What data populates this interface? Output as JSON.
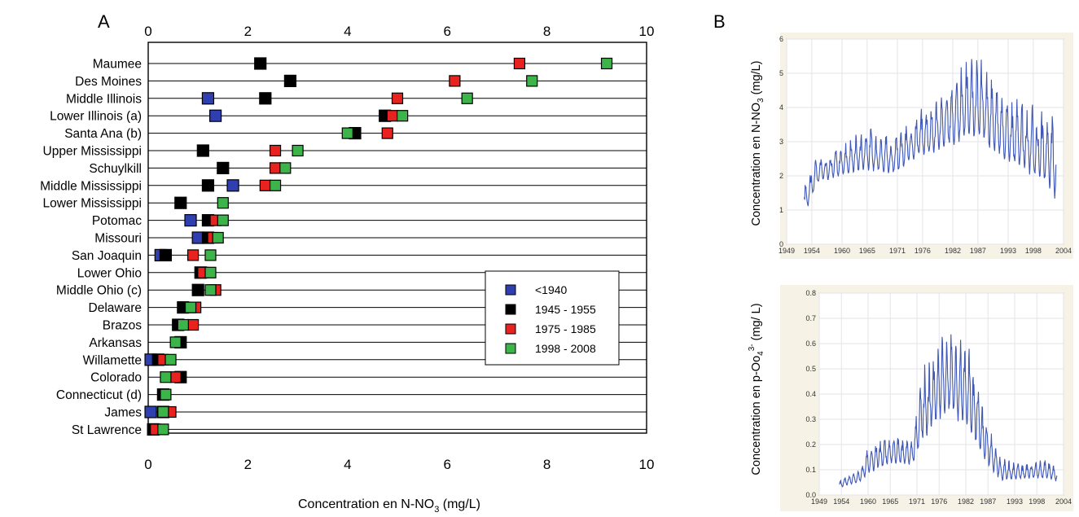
{
  "chart_data": [
    {
      "panel": "A",
      "type": "scatter",
      "xlabel": "Concentration en N-NO₃ (mg/L)",
      "xlabel_parts": {
        "main": "Concentration en N-NO",
        "sub": "3",
        "tail": " (mg/L)"
      },
      "xlim": [
        0,
        10
      ],
      "xticks": [
        "0",
        "2",
        "4",
        "6",
        "8",
        "10"
      ],
      "legend": {
        "placement": "center-right",
        "entries": [
          {
            "label": "<1940",
            "color": "#2f3fb0"
          },
          {
            "label": "1945 - 1955",
            "color": "#000000"
          },
          {
            "label": "1975 - 1985",
            "color": "#e8231f"
          },
          {
            "label": "1998 - 2008",
            "color": "#3cb44a"
          }
        ]
      },
      "categories": [
        "Maumee",
        "Des Moines",
        "Middle Illinois",
        "Lower Illinois (a)",
        "Santa Ana (b)",
        "Upper Mississippi",
        "Schuylkill",
        "Middle Mississippi",
        "Lower Mississippi",
        "Potomac",
        "Missouri",
        "San Joaquin",
        "Lower Ohio",
        "Middle Ohio (c)",
        "Delaware",
        "Brazos",
        "Arkansas",
        "Willamette",
        "Colorado",
        "Connecticut (d)",
        "James",
        "St Lawrence"
      ],
      "series": [
        {
          "name": "<1940",
          "values": [
            null,
            null,
            1.2,
            1.35,
            null,
            null,
            null,
            1.7,
            null,
            0.85,
            1.0,
            0.25,
            null,
            null,
            null,
            null,
            null,
            0.05,
            null,
            null,
            0.05,
            null
          ]
        },
        {
          "name": "1945 - 1955",
          "values": [
            2.25,
            2.85,
            2.35,
            4.75,
            4.15,
            1.1,
            1.5,
            1.2,
            0.65,
            1.2,
            1.2,
            0.35,
            1.05,
            1.0,
            0.7,
            0.6,
            0.65,
            0.2,
            0.65,
            0.3,
            0.3,
            0.1
          ]
        },
        {
          "name": "1975 - 1985",
          "values": [
            7.45,
            6.15,
            5.0,
            4.9,
            4.8,
            2.55,
            2.55,
            2.35,
            null,
            1.35,
            1.3,
            0.9,
            1.1,
            1.35,
            0.95,
            0.9,
            null,
            0.3,
            0.55,
            null,
            0.45,
            0.15
          ]
        },
        {
          "name": "1998 - 2008",
          "values": [
            9.2,
            7.7,
            6.4,
            5.1,
            4.0,
            3.0,
            2.75,
            2.55,
            1.5,
            1.5,
            1.4,
            1.25,
            1.25,
            1.25,
            0.85,
            0.7,
            0.55,
            0.45,
            0.35,
            0.35,
            0.3,
            0.3
          ]
        }
      ]
    },
    {
      "panel": "B",
      "type": "line",
      "ylabel": "Concentration en N-NO₃ (mg/L)",
      "ylabel_parts": {
        "main": "Concentration en N-NO",
        "sub": "3",
        "tail": " (mg/L)"
      },
      "xlim": [
        1949,
        2004
      ],
      "ylim": [
        0,
        6
      ],
      "xticks": [
        "1949",
        "1954",
        "1960",
        "1965",
        "1971",
        "1976",
        "1982",
        "1987",
        "1993",
        "1998",
        "2004"
      ],
      "yticks": [
        "0",
        "1",
        "2",
        "3",
        "4",
        "5",
        "6"
      ],
      "series_color": "#3f57b5",
      "x_start": 1952.5,
      "x_end": 2002.5,
      "envelope": {
        "x": [
          1952.5,
          1955,
          1960,
          1965,
          1970,
          1975,
          1980,
          1985,
          1988,
          1990,
          1995,
          2000,
          2002.5
        ],
        "low": [
          0.6,
          1.6,
          1.8,
          1.9,
          1.8,
          2.3,
          2.4,
          2.6,
          2.5,
          2.2,
          1.8,
          1.4,
          0.8
        ],
        "high": [
          1.9,
          2.6,
          3.0,
          3.6,
          3.2,
          3.9,
          4.6,
          5.7,
          5.6,
          5.0,
          4.4,
          4.1,
          4.0
        ]
      }
    },
    {
      "panel": "B",
      "type": "line",
      "ylabel": "Concentration en p-Oo₄³⁻ (mg/L)",
      "ylabel_parts": {
        "main": "Concentration en p-Oo",
        "sub": "4",
        "sup": "3-",
        "tail": " (mg/ L)"
      },
      "xlim": [
        1949,
        2004
      ],
      "ylim": [
        0,
        0.8
      ],
      "xticks": [
        "1949",
        "1954",
        "1960",
        "1965",
        "1971",
        "1976",
        "1982",
        "1987",
        "1993",
        "1998",
        "2004"
      ],
      "yticks": [
        "0.0",
        "0.1",
        "0.2",
        "0.3",
        "0.4",
        "0.5",
        "0.6",
        "0.7",
        "0.8"
      ],
      "series_color": "#3f57b5",
      "x_start": 1953.5,
      "x_end": 2002.5,
      "envelope": {
        "x": [
          1953.5,
          1955,
          1958,
          1960,
          1965,
          1970,
          1972,
          1975,
          1978,
          1982,
          1984,
          1986,
          1988,
          1990,
          1995,
          2000,
          2002.5
        ],
        "low": [
          0.02,
          0.03,
          0.04,
          0.06,
          0.1,
          0.1,
          0.15,
          0.22,
          0.25,
          0.2,
          0.15,
          0.1,
          0.06,
          0.04,
          0.05,
          0.05,
          0.04
        ],
        "high": [
          0.06,
          0.08,
          0.1,
          0.2,
          0.25,
          0.22,
          0.5,
          0.6,
          0.7,
          0.65,
          0.55,
          0.35,
          0.25,
          0.15,
          0.13,
          0.15,
          0.12
        ]
      }
    }
  ],
  "panel_labels": {
    "a": "A",
    "b": "B"
  }
}
